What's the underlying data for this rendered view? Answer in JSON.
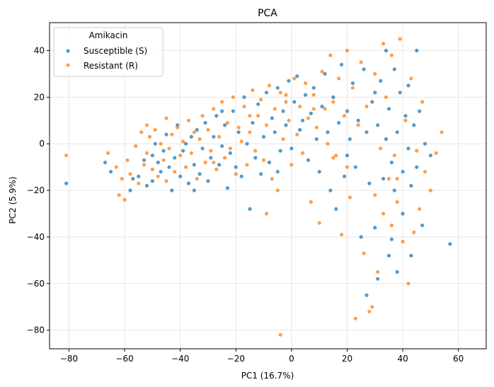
{
  "chart_data": {
    "type": "scatter",
    "title": "PCA",
    "xlabel": "PC1 (16.7%)",
    "ylabel": "PC2 (5.9%)",
    "xlim": [
      -87,
      70
    ],
    "ylim": [
      -88,
      52
    ],
    "xticks": [
      -80,
      -60,
      -40,
      -20,
      0,
      20,
      40,
      60
    ],
    "yticks": [
      -80,
      -60,
      -40,
      -20,
      0,
      20,
      40
    ],
    "xtick_labels": [
      "−80",
      "−60",
      "−40",
      "−20",
      "0",
      "20",
      "40",
      "60"
    ],
    "ytick_labels": [
      "−80",
      "−60",
      "−40",
      "−20",
      "0",
      "20",
      "40"
    ],
    "grid": true,
    "legend": {
      "title": "Amikacin",
      "placement": "top-left"
    },
    "series": [
      {
        "name": "Susceptible (S)",
        "color": "#1f77b4",
        "points": [
          [
            -81,
            -17
          ],
          [
            -67,
            -8
          ],
          [
            -65,
            -12
          ],
          [
            -58,
            -20
          ],
          [
            -57,
            -15
          ],
          [
            -55,
            -14
          ],
          [
            -53,
            -7
          ],
          [
            -52,
            -18
          ],
          [
            -50,
            -16
          ],
          [
            -49,
            0
          ],
          [
            -48,
            -8
          ],
          [
            -47,
            -12
          ],
          [
            -46,
            -3
          ],
          [
            -45,
            4
          ],
          [
            -44,
            -10
          ],
          [
            -43,
            -20
          ],
          [
            -42,
            -6
          ],
          [
            -41,
            8
          ],
          [
            -40,
            -14
          ],
          [
            -39,
            -3
          ],
          [
            -38,
            0
          ],
          [
            -37,
            -17
          ],
          [
            -36,
            3
          ],
          [
            -35,
            -9
          ],
          [
            -34,
            6
          ],
          [
            -33,
            -13
          ],
          [
            -32,
            -2
          ],
          [
            -31,
            9
          ],
          [
            -30,
            -16
          ],
          [
            -29,
            -6
          ],
          [
            -28,
            3
          ],
          [
            -27,
            12
          ],
          [
            -26,
            -9
          ],
          [
            -25,
            -1
          ],
          [
            -24,
            8
          ],
          [
            -23,
            -19
          ],
          [
            -22,
            -4
          ],
          [
            -21,
            14
          ],
          [
            -20,
            -10
          ],
          [
            -19,
            5
          ],
          [
            -18,
            -14
          ],
          [
            -17,
            20
          ],
          [
            -16,
            0
          ],
          [
            -15,
            -28
          ],
          [
            -14,
            9
          ],
          [
            -13,
            -6
          ],
          [
            -12,
            17
          ],
          [
            -11,
            -13
          ],
          [
            -10,
            3
          ],
          [
            -9,
            22
          ],
          [
            -8,
            -8
          ],
          [
            -7,
            11
          ],
          [
            -6,
            5
          ],
          [
            -5,
            24
          ],
          [
            -4,
            -3
          ],
          [
            -3,
            14
          ],
          [
            -2,
            8
          ],
          [
            -1,
            27
          ],
          [
            0,
            -2
          ],
          [
            1,
            18
          ],
          [
            2,
            29
          ],
          [
            3,
            6
          ],
          [
            4,
            10
          ],
          [
            5,
            21
          ],
          [
            6,
            -7
          ],
          [
            7,
            13
          ],
          [
            8,
            24
          ],
          [
            9,
            2
          ],
          [
            10,
            -12
          ],
          [
            11,
            16
          ],
          [
            12,
            30
          ],
          [
            13,
            5
          ],
          [
            14,
            -20
          ],
          [
            15,
            20
          ],
          [
            16,
            -28
          ],
          [
            17,
            9
          ],
          [
            18,
            34
          ],
          [
            19,
            -14
          ],
          [
            20,
            14
          ],
          [
            21,
            2
          ],
          [
            22,
            26
          ],
          [
            23,
            -10
          ],
          [
            24,
            10
          ],
          [
            25,
            -40
          ],
          [
            26,
            32
          ],
          [
            27,
            -65
          ],
          [
            27,
            5
          ],
          [
            28,
            -17
          ],
          [
            29,
            18
          ],
          [
            30,
            -36
          ],
          [
            31,
            -58
          ],
          [
            31,
            8
          ],
          [
            32,
            27
          ],
          [
            33,
            -15
          ],
          [
            34,
            40
          ],
          [
            34,
            2
          ],
          [
            35,
            -48
          ],
          [
            35,
            15
          ],
          [
            36,
            -8
          ],
          [
            37,
            32
          ],
          [
            37,
            -20
          ],
          [
            38,
            -55
          ],
          [
            38,
            5
          ],
          [
            39,
            22
          ],
          [
            40,
            -30
          ],
          [
            40,
            -12
          ],
          [
            41,
            12
          ],
          [
            42,
            -2
          ],
          [
            42,
            25
          ],
          [
            43,
            -18
          ],
          [
            44,
            8
          ],
          [
            45,
            -10
          ],
          [
            46,
            14
          ],
          [
            47,
            -35
          ],
          [
            48,
            0
          ],
          [
            50,
            -5
          ],
          [
            57,
            -43
          ],
          [
            45,
            40
          ],
          [
            30,
            22
          ],
          [
            20,
            -5
          ],
          [
            -5,
            -12
          ],
          [
            -25,
            14
          ],
          [
            -35,
            -20
          ],
          [
            -50,
            -5
          ],
          [
            36,
            -41
          ],
          [
            43,
            -48
          ]
        ]
      },
      {
        "name": "Resistant (R)",
        "color": "#ff7f0e",
        "points": [
          [
            -81,
            -5
          ],
          [
            -66,
            -4
          ],
          [
            -63,
            -10
          ],
          [
            -62,
            -22
          ],
          [
            -61,
            -15
          ],
          [
            -60,
            -24
          ],
          [
            -59,
            -7
          ],
          [
            -58,
            -13
          ],
          [
            -56,
            -1
          ],
          [
            -55,
            -17
          ],
          [
            -54,
            5
          ],
          [
            -53,
            -9
          ],
          [
            -52,
            -4
          ],
          [
            -51,
            3
          ],
          [
            -50,
            -11
          ],
          [
            -49,
            6
          ],
          [
            -48,
            -14
          ],
          [
            -47,
            0
          ],
          [
            -46,
            -7
          ],
          [
            -45,
            11
          ],
          [
            -44,
            -2
          ],
          [
            -43,
            4
          ],
          [
            -42,
            -12
          ],
          [
            -41,
            7
          ],
          [
            -40,
            -5
          ],
          [
            -39,
            1
          ],
          [
            -38,
            -10
          ],
          [
            -37,
            10
          ],
          [
            -36,
            -4
          ],
          [
            -35,
            5
          ],
          [
            -34,
            -15
          ],
          [
            -33,
            2
          ],
          [
            -32,
            12
          ],
          [
            -31,
            -8
          ],
          [
            -30,
            6
          ],
          [
            -29,
            -3
          ],
          [
            -28,
            15
          ],
          [
            -27,
            -11
          ],
          [
            -26,
            3
          ],
          [
            -25,
            18
          ],
          [
            -24,
            -6
          ],
          [
            -23,
            9
          ],
          [
            -22,
            -2
          ],
          [
            -21,
            20
          ],
          [
            -20,
            -13
          ],
          [
            -19,
            7
          ],
          [
            -18,
            1
          ],
          [
            -17,
            16
          ],
          [
            -16,
            -9
          ],
          [
            -15,
            5
          ],
          [
            -14,
            23
          ],
          [
            -13,
            -3
          ],
          [
            -12,
            12
          ],
          [
            -11,
            19
          ],
          [
            -10,
            -7
          ],
          [
            -9,
            8
          ],
          [
            -8,
            25
          ],
          [
            -7,
            -15
          ],
          [
            -6,
            15
          ],
          [
            -5,
            -20
          ],
          [
            -4,
            22
          ],
          [
            -4,
            -82
          ],
          [
            -3,
            2
          ],
          [
            -2,
            18
          ],
          [
            -1,
            10
          ],
          [
            0,
            -9
          ],
          [
            1,
            28
          ],
          [
            2,
            4
          ],
          [
            3,
            16
          ],
          [
            4,
            -4
          ],
          [
            5,
            26
          ],
          [
            6,
            11
          ],
          [
            7,
            -25
          ],
          [
            8,
            21
          ],
          [
            9,
            7
          ],
          [
            10,
            -34
          ],
          [
            11,
            31
          ],
          [
            12,
            15
          ],
          [
            13,
            0
          ],
          [
            14,
            38
          ],
          [
            15,
            18
          ],
          [
            16,
            -5
          ],
          [
            17,
            28
          ],
          [
            18,
            -39
          ],
          [
            19,
            12
          ],
          [
            20,
            40
          ],
          [
            21,
            -23
          ],
          [
            22,
            24
          ],
          [
            23,
            -75
          ],
          [
            24,
            8
          ],
          [
            25,
            35
          ],
          [
            26,
            -47
          ],
          [
            27,
            16
          ],
          [
            28,
            -72
          ],
          [
            29,
            -70
          ],
          [
            30,
            -22
          ],
          [
            30,
            30
          ],
          [
            31,
            -55
          ],
          [
            32,
            -2
          ],
          [
            33,
            -30
          ],
          [
            34,
            20
          ],
          [
            35,
            -15
          ],
          [
            36,
            -35
          ],
          [
            36,
            38
          ],
          [
            37,
            -5
          ],
          [
            38,
            -25
          ],
          [
            39,
            45
          ],
          [
            40,
            -42
          ],
          [
            41,
            10
          ],
          [
            42,
            -60
          ],
          [
            43,
            28
          ],
          [
            44,
            -38
          ],
          [
            45,
            -3
          ],
          [
            46,
            -28
          ],
          [
            47,
            18
          ],
          [
            48,
            -12
          ],
          [
            50,
            -20
          ],
          [
            52,
            -4
          ],
          [
            54,
            5
          ],
          [
            -9,
            -30
          ],
          [
            -28,
            -8
          ],
          [
            -45,
            -16
          ],
          [
            20,
            -10
          ],
          [
            8,
            15
          ],
          [
            -15,
            12
          ],
          [
            33,
            43
          ],
          [
            -52,
            8
          ],
          [
            38,
            -15
          ],
          [
            15,
            -6
          ],
          [
            -2,
            21
          ]
        ]
      }
    ]
  }
}
